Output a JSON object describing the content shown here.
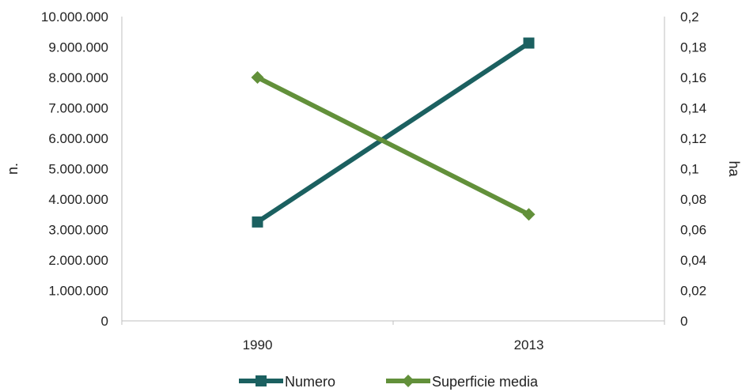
{
  "chart_data": {
    "type": "line",
    "title": "",
    "categories": [
      "1990",
      "2013"
    ],
    "series": [
      {
        "name": "Numero",
        "axis": "left",
        "values": [
          3250000,
          9130000
        ],
        "color": "#1b6060",
        "marker": "square"
      },
      {
        "name": "Superficie media",
        "axis": "right",
        "values": [
          0.16,
          0.07
        ],
        "color": "#62903a",
        "marker": "diamond"
      }
    ],
    "y_left": {
      "label": "n.",
      "ylim": [
        0,
        10000000
      ],
      "ticks": [
        "0",
        "1.000.000",
        "2.000.000",
        "3.000.000",
        "4.000.000",
        "5.000.000",
        "6.000.000",
        "7.000.000",
        "8.000.000",
        "9.000.000",
        "10.000.000"
      ]
    },
    "y_right": {
      "label": "ha",
      "ylim": [
        0,
        0.2
      ],
      "ticks": [
        "0",
        "0,02",
        "0,04",
        "0,06",
        "0,08",
        "0,1",
        "0,12",
        "0,14",
        "0,16",
        "0,18",
        "0,2"
      ]
    },
    "grid": false,
    "legend_position": "bottom"
  }
}
